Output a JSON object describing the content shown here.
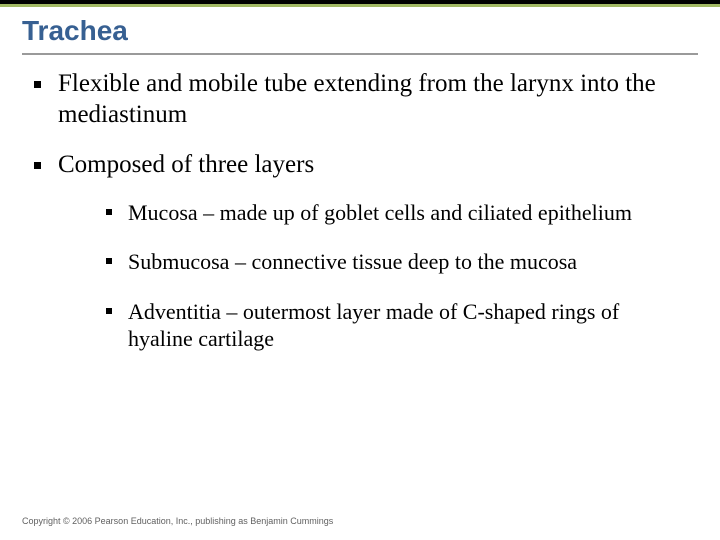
{
  "colors": {
    "title": "#376092",
    "accent_bar": "#a2b964",
    "top_bar": "#000000",
    "underline": "#9a9a9a",
    "body_text": "#000000",
    "footer_text": "#616161",
    "background": "#ffffff"
  },
  "typography": {
    "title_fontsize": 28,
    "body_fontsize": 25,
    "sub_fontsize": 22,
    "footer_fontsize": 9,
    "title_family": "Arial",
    "body_family": "Times New Roman"
  },
  "title": "Trachea",
  "bullets": [
    {
      "text": "Flexible and mobile tube extending from the larynx into the mediastinum",
      "children": []
    },
    {
      "text": "Composed of three layers",
      "children": [
        {
          "text": "Mucosa – made up of goblet cells and ciliated epithelium"
        },
        {
          "text": "Submucosa – connective tissue deep to the mucosa"
        },
        {
          "text": "Adventitia – outermost layer made of C-shaped rings of hyaline cartilage"
        }
      ]
    }
  ],
  "footer": "Copyright © 2006 Pearson Education, Inc., publishing as Benjamin Cummings"
}
